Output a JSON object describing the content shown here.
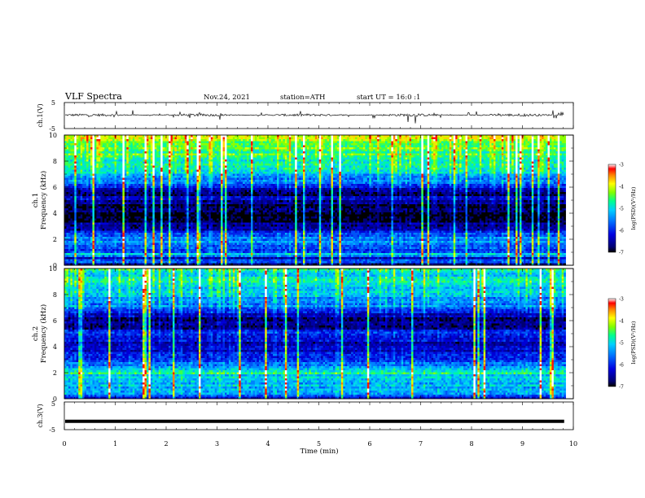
{
  "header": {
    "title": "VLF Spectra",
    "date": "Nov.24, 2021",
    "station": "station=ATH",
    "start": "start UT = 16:0 :1"
  },
  "chart_data": [
    {
      "type": "line",
      "name": "ch1-waveform",
      "ylabel": "ch.1(V)",
      "ylim": [
        -5,
        5
      ],
      "yticks": [
        5,
        -5
      ],
      "xlim": [
        0,
        10
      ],
      "description_series": "noisy waveform around ~0.2 V with spikes up to ~±2.5 V",
      "baseline": 0.2,
      "noise_amplitude": 0.5,
      "spikes": [
        [
          1.03,
          1.6
        ],
        [
          1.35,
          2.0
        ],
        [
          3.0,
          2.4
        ],
        [
          3.05,
          -1.6
        ],
        [
          6.75,
          -2.5
        ],
        [
          6.9,
          -3.0
        ],
        [
          8.1,
          1.6
        ],
        [
          9.6,
          2.0
        ]
      ]
    },
    {
      "type": "heatmap",
      "name": "ch1-spectrogram",
      "ylabel_top": "ch.1",
      "ylabel": "Frequency (kHz)",
      "ylim": [
        0,
        10
      ],
      "yticks": [
        0,
        2,
        4,
        6,
        8,
        10
      ],
      "xlim": [
        0,
        9.85
      ],
      "colorbar": {
        "label": "log(PSD)(V²/Hz)",
        "ticks": [
          -3,
          -4,
          -5,
          -6,
          -7
        ]
      },
      "band_profile_khz": [
        [
          0.0,
          -7.0
        ],
        [
          0.3,
          -5.2
        ],
        [
          0.5,
          -6.8
        ],
        [
          0.8,
          -5.0
        ],
        [
          1.2,
          -6.2
        ],
        [
          1.6,
          -5.6
        ],
        [
          2.0,
          -5.4
        ],
        [
          2.3,
          -5.7
        ],
        [
          2.6,
          -6.3
        ],
        [
          3.0,
          -6.5
        ],
        [
          3.5,
          -6.9
        ],
        [
          4.0,
          -7.0
        ],
        [
          4.5,
          -6.9
        ],
        [
          5.0,
          -6.4
        ],
        [
          5.5,
          -6.7
        ],
        [
          6.0,
          -6.3
        ],
        [
          6.5,
          -5.6
        ],
        [
          7.0,
          -5.1
        ],
        [
          8.0,
          -4.8
        ],
        [
          9.0,
          -4.5
        ],
        [
          10.0,
          -4.1
        ]
      ]
    },
    {
      "type": "heatmap",
      "name": "ch2-spectrogram",
      "ylabel_top": "ch.2",
      "ylabel": "Frequency (kHz)",
      "ylim": [
        0,
        10
      ],
      "yticks": [
        0,
        2,
        4,
        6,
        8,
        10
      ],
      "xlim": [
        0,
        9.85
      ],
      "colorbar": {
        "label": "log(PSD)(V²/Hz)",
        "ticks": [
          -3,
          -4,
          -5,
          -6,
          -7
        ]
      },
      "band_profile_khz": [
        [
          0.0,
          -6.8
        ],
        [
          0.3,
          -5.2
        ],
        [
          0.6,
          -5.5
        ],
        [
          1.0,
          -5.0
        ],
        [
          1.5,
          -5.3
        ],
        [
          2.0,
          -4.8
        ],
        [
          2.5,
          -5.6
        ],
        [
          3.0,
          -5.9
        ],
        [
          3.5,
          -6.2
        ],
        [
          4.0,
          -6.5
        ],
        [
          4.5,
          -6.2
        ],
        [
          5.0,
          -5.9
        ],
        [
          5.5,
          -6.6
        ],
        [
          6.0,
          -6.8
        ],
        [
          6.5,
          -6.3
        ],
        [
          7.0,
          -5.6
        ],
        [
          8.0,
          -5.2
        ],
        [
          9.0,
          -5.0
        ],
        [
          10.0,
          -4.9
        ]
      ]
    },
    {
      "type": "line",
      "name": "ch3-waveform",
      "ylabel": "ch.3(V)",
      "ylim": [
        -5,
        5
      ],
      "yticks": [
        5,
        -5
      ],
      "xlim": [
        0,
        10
      ],
      "baseline": -2.0,
      "xlabel": "Time (min)",
      "xticks": [
        0,
        1,
        2,
        3,
        4,
        5,
        6,
        7,
        8,
        9,
        10
      ]
    }
  ]
}
